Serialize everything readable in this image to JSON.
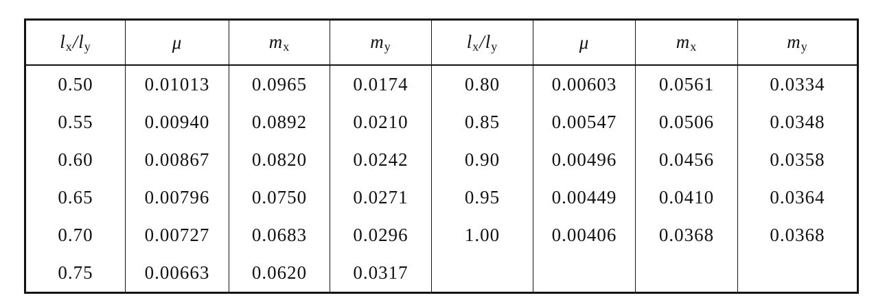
{
  "table": {
    "header": [
      [
        {
          "text": "l",
          "sub": "x"
        },
        {
          "text": "/l",
          "sub": "y"
        }
      ],
      [
        {
          "text": "μ"
        }
      ],
      [
        {
          "text": "m",
          "sub": "x"
        }
      ],
      [
        {
          "text": "m",
          "sub": "y"
        }
      ],
      [
        {
          "text": "l",
          "sub": "x"
        },
        {
          "text": "/l",
          "sub": "y"
        }
      ],
      [
        {
          "text": "μ"
        }
      ],
      [
        {
          "text": "m",
          "sub": "x"
        }
      ],
      [
        {
          "text": "m",
          "sub": "y"
        }
      ]
    ],
    "rows": [
      [
        "0.50",
        "0.01013",
        "0.0965",
        "0.0174",
        "0.80",
        "0.00603",
        "0.0561",
        "0.0334"
      ],
      [
        "0.55",
        "0.00940",
        "0.0892",
        "0.0210",
        "0.85",
        "0.00547",
        "0.0506",
        "0.0348"
      ],
      [
        "0.60",
        "0.00867",
        "0.0820",
        "0.0242",
        "0.90",
        "0.00496",
        "0.0456",
        "0.0358"
      ],
      [
        "0.65",
        "0.00796",
        "0.0750",
        "0.0271",
        "0.95",
        "0.00449",
        "0.0410",
        "0.0364"
      ],
      [
        "0.70",
        "0.00727",
        "0.0683",
        "0.0296",
        "1.00",
        "0.00406",
        "0.0368",
        "0.0368"
      ],
      [
        "0.75",
        "0.00663",
        "0.0620",
        "0.0317"
      ]
    ]
  }
}
